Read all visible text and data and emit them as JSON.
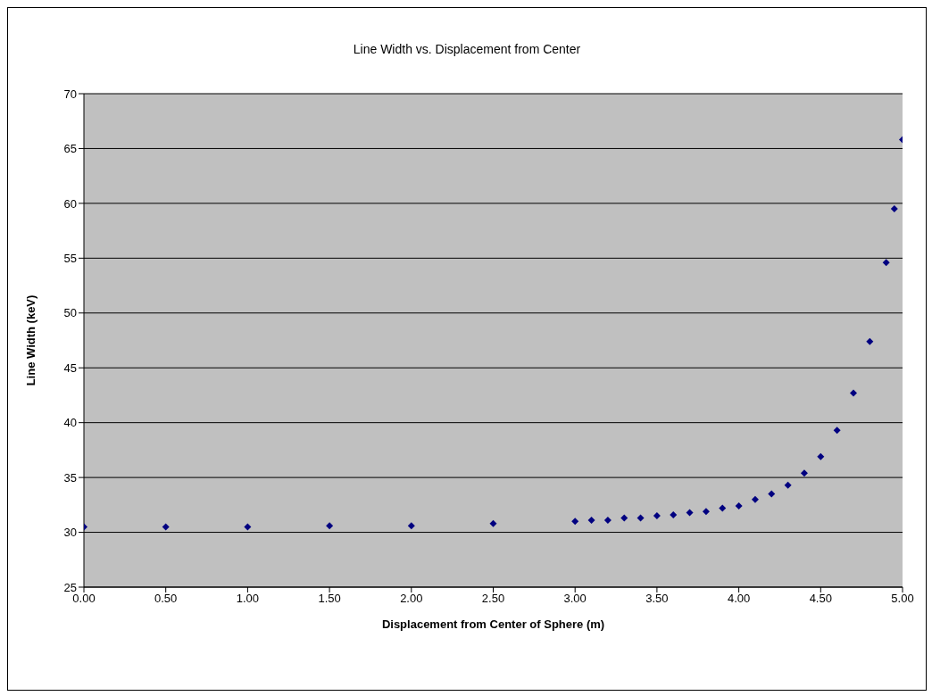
{
  "chart_data": {
    "type": "scatter",
    "title": "Line Width vs. Displacement from Center",
    "xlabel": "Displacement from Center of Sphere (m)",
    "ylabel": "Line Width (keV)",
    "x": [
      0,
      0.5,
      1,
      1.5,
      2,
      2.5,
      3,
      3.1,
      3.2,
      3.3,
      3.4,
      3.5,
      3.6,
      3.7,
      3.8,
      3.9,
      4,
      4.1,
      4.2,
      4.3,
      4.4,
      4.5,
      4.6,
      4.7,
      4.8,
      4.9,
      4.95,
      5
    ],
    "series": [
      {
        "color": "#000080",
        "values": [
          30.5,
          30.5,
          30.5,
          30.6,
          30.6,
          30.8,
          31.0,
          31.1,
          31.1,
          31.3,
          31.3,
          31.5,
          31.6,
          31.8,
          31.9,
          32.2,
          32.4,
          33.0,
          33.5,
          34.3,
          35.4,
          36.9,
          39.3,
          42.7,
          47.4,
          54.6,
          59.5,
          65.8
        ]
      }
    ],
    "xlim": [
      0,
      5
    ],
    "xticks": [
      {
        "value": 0,
        "label": "0.00"
      },
      {
        "value": 0.5,
        "label": "0.50"
      },
      {
        "value": 1,
        "label": "1.00"
      },
      {
        "value": 1.5,
        "label": "1.50"
      },
      {
        "value": 2,
        "label": "2.00"
      },
      {
        "value": 2.5,
        "label": "2.50"
      },
      {
        "value": 3,
        "label": "3.00"
      },
      {
        "value": 3.5,
        "label": "3.50"
      },
      {
        "value": 4,
        "label": "4.00"
      },
      {
        "value": 4.5,
        "label": "4.50"
      },
      {
        "value": 5,
        "label": "5.00"
      }
    ],
    "ylim": [
      25,
      70
    ],
    "yticks": [
      25,
      30,
      35,
      40,
      45,
      50,
      55,
      60,
      65,
      70
    ],
    "grid": "y",
    "marker": "diamond",
    "legend": false
  }
}
